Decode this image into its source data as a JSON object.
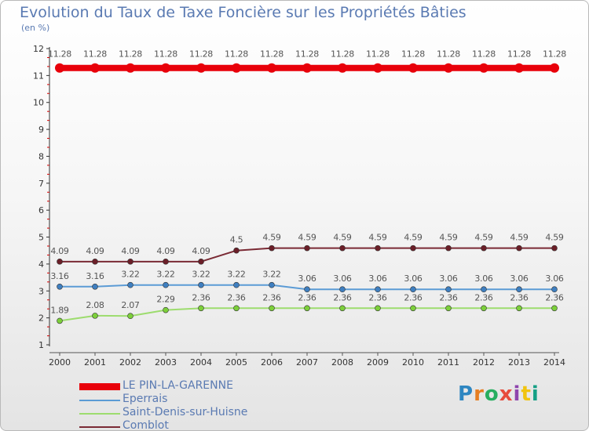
{
  "title": "Evolution du Taux de Taxe Foncière sur les Propriétés Bâties",
  "unit_label": "(en %)",
  "brand": {
    "text": "Proxiti",
    "colors": [
      "#2e86c1",
      "#e67e22",
      "#27ae60",
      "#e74c3c",
      "#8e44ad",
      "#f1c40f",
      "#16a085"
    ]
  },
  "chart_data": {
    "type": "line",
    "title": "Evolution du Taux de Taxe Foncière sur les Propriétés Bâties",
    "ylabel": "(en %)",
    "xlabel": "",
    "ylim": [
      1,
      12
    ],
    "yticks": [
      1,
      2,
      3,
      4,
      5,
      6,
      7,
      8,
      9,
      10,
      11,
      12
    ],
    "x": [
      "2000",
      "2001",
      "2002",
      "2003",
      "2004",
      "2005",
      "2006",
      "2007",
      "2008",
      "2009",
      "2010",
      "2011",
      "2012",
      "2013",
      "2014"
    ],
    "series": [
      {
        "name": "LE PIN-LA-GARENNE",
        "color": "#e8000a",
        "point_color": "#e8000a",
        "label_color": "#555555",
        "values": [
          11.28,
          11.28,
          11.28,
          11.28,
          11.28,
          11.28,
          11.28,
          11.28,
          11.28,
          11.28,
          11.28,
          11.28,
          11.28,
          11.28,
          11.28
        ],
        "labels": [
          "11.28",
          "11.28",
          "11.28",
          "11.28",
          "11.28",
          "11.28",
          "11.28",
          "11.28",
          "11.28",
          "11.28",
          "11.28",
          "11.28",
          "11.28",
          "11.28",
          "11.28"
        ]
      },
      {
        "name": "Eperrais",
        "color": "#5b9bd5",
        "point_color": "#3f7fc0",
        "label_color": "#555555",
        "values": [
          3.16,
          3.16,
          3.22,
          3.22,
          3.22,
          3.22,
          3.22,
          3.06,
          3.06,
          3.06,
          3.06,
          3.06,
          3.06,
          3.06,
          3.06
        ],
        "labels": [
          "3.16",
          "3.16",
          "3.22",
          "3.22",
          "3.22",
          "3.22",
          "3.22",
          "3.06",
          "3.06",
          "3.06",
          "3.06",
          "3.06",
          "3.06",
          "3.06",
          "3.06"
        ]
      },
      {
        "name": "Saint-Denis-sur-Huisne",
        "color": "#9ddc6e",
        "point_color": "#7ccf3a",
        "label_color": "#555555",
        "values": [
          1.89,
          2.08,
          2.07,
          2.29,
          2.36,
          2.36,
          2.36,
          2.36,
          2.36,
          2.36,
          2.36,
          2.36,
          2.36,
          2.36,
          2.36
        ],
        "labels": [
          "1.89",
          "2.08",
          "2.07",
          "2.29",
          "2.36",
          "2.36",
          "2.36",
          "2.36",
          "2.36",
          "2.36",
          "2.36",
          "2.36",
          "2.36",
          "2.36",
          "2.36"
        ]
      },
      {
        "name": "Comblot",
        "color": "#7a2a34",
        "point_color": "#6b1f28",
        "label_color": "#555555",
        "values": [
          4.09,
          4.09,
          4.09,
          4.09,
          4.09,
          4.5,
          4.59,
          4.59,
          4.59,
          4.59,
          4.59,
          4.59,
          4.59,
          4.59,
          4.59
        ],
        "labels": [
          "4.09",
          "4.09",
          "4.09",
          "4.09",
          "4.09",
          "4.5",
          "4.59",
          "4.59",
          "4.59",
          "4.59",
          "4.59",
          "4.59",
          "4.59",
          "4.59",
          "4.59"
        ]
      }
    ],
    "legend": {
      "position": "bottom-left",
      "items": [
        "LE PIN-LA-GARENNE",
        "Eperrais",
        "Saint-Denis-sur-Huisne",
        "Comblot"
      ]
    }
  }
}
